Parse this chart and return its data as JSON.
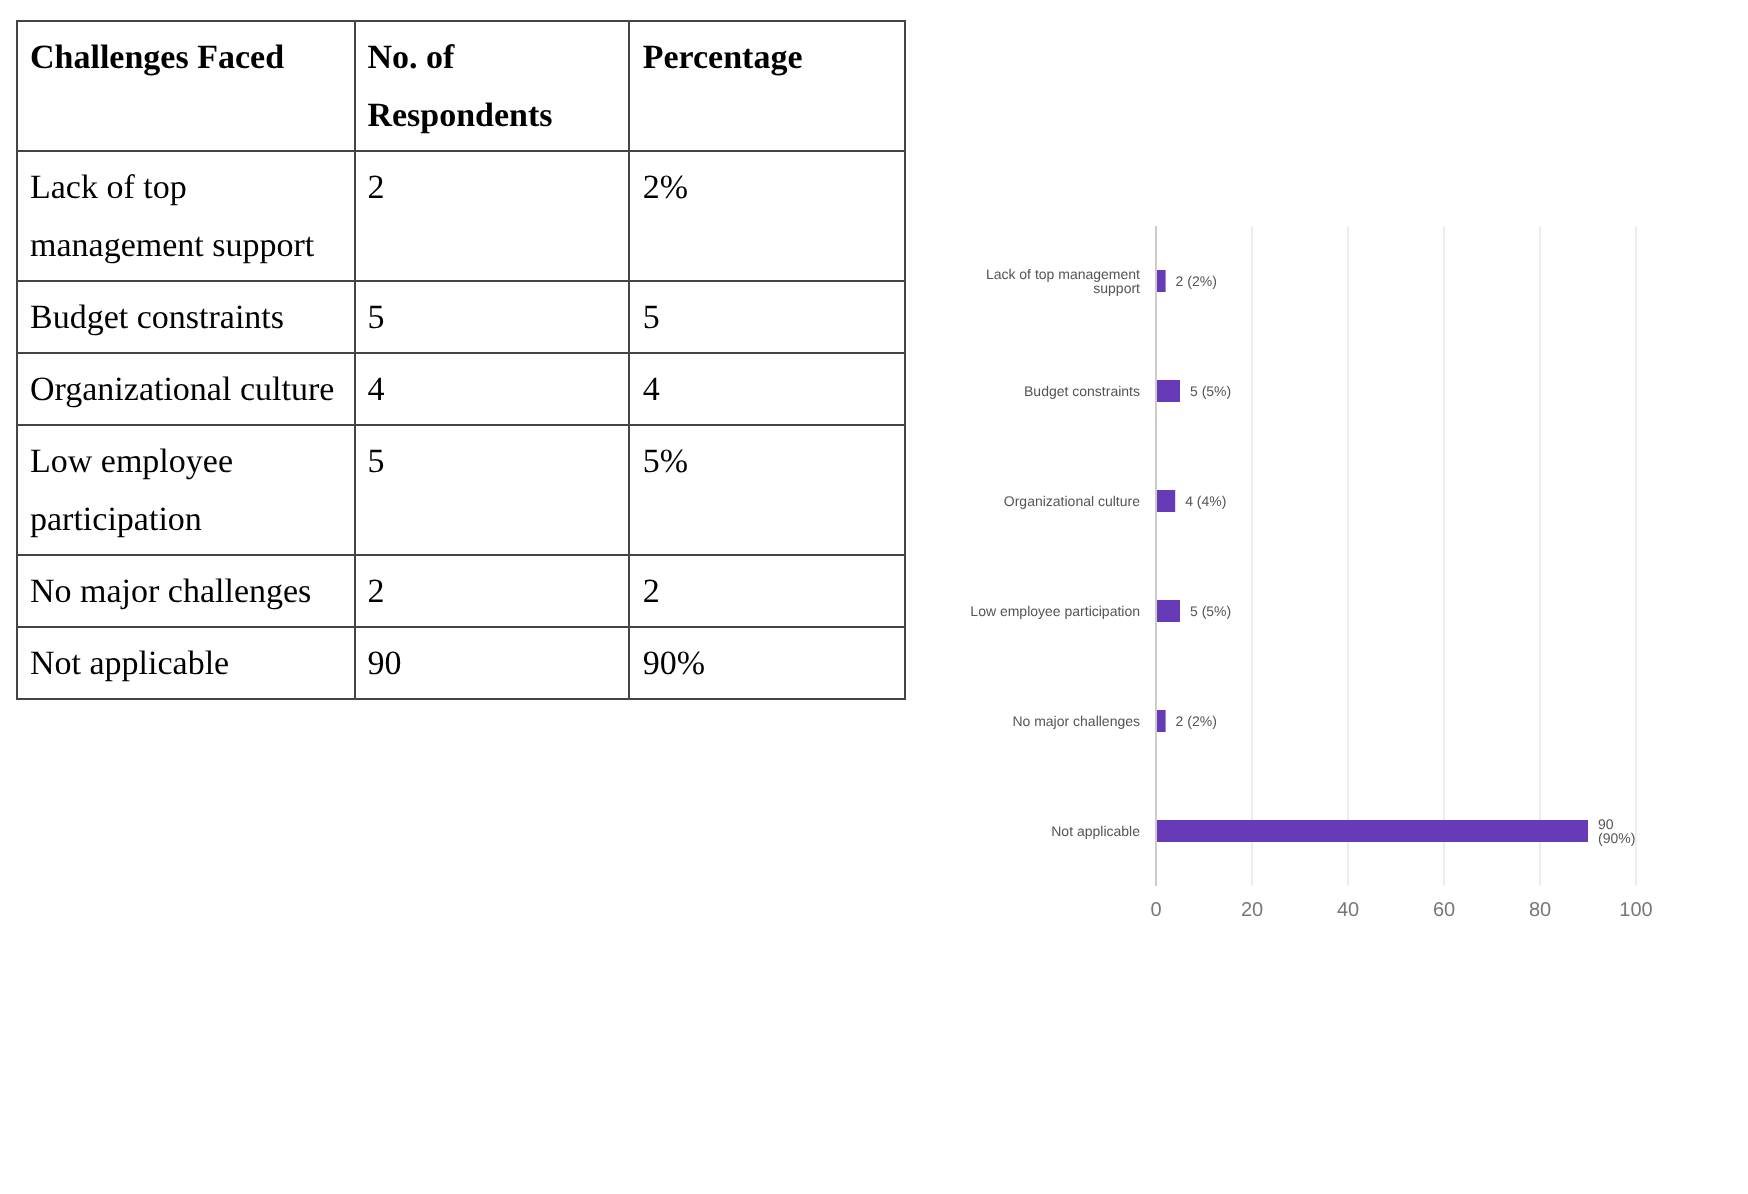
{
  "chart_data": [
    {
      "type": "other",
      "data_labels": true,
      "ylabel": "Challenges Faced",
      "categories": [
        "Lack of top management support",
        "Budget constraints",
        "Organizational culture",
        "Low employee participation",
        "No major challenges",
        "Not applicable"
      ],
      "series": [
        {
          "name": "No. of Respondents",
          "values": [
            2,
            5,
            4,
            5,
            2,
            90
          ]
        },
        {
          "name": "Percentage",
          "values": [
            2,
            5,
            4,
            5,
            2,
            90
          ],
          "value_labels": [
            "2%",
            "5",
            "4",
            "5%",
            "2",
            "90%"
          ]
        }
      ]
    },
    {
      "type": "bar",
      "orientation": "horizontal",
      "categories": [
        "Lack of top management support",
        "Budget constraints",
        "Organizational culture",
        "Low employee participation",
        "No major challenges",
        "Not applicable"
      ],
      "values": [
        2,
        5,
        4,
        5,
        2,
        90
      ],
      "value_labels": [
        "2 (2%)",
        "5 (5%)",
        "4 (4%)",
        "5 (5%)",
        "2 (2%)",
        "90 (90%)"
      ],
      "color": "#673ab7",
      "xlim": [
        0,
        100
      ],
      "xticks": [
        0,
        20,
        40,
        60,
        80,
        100
      ],
      "grid": "x"
    }
  ]
}
